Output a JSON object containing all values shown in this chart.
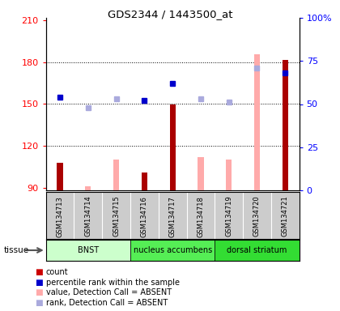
{
  "title": "GDS2344 / 1443500_at",
  "samples": [
    "GSM134713",
    "GSM134714",
    "GSM134715",
    "GSM134716",
    "GSM134717",
    "GSM134718",
    "GSM134719",
    "GSM134720",
    "GSM134721"
  ],
  "count_values": [
    108,
    null,
    null,
    101,
    150,
    null,
    null,
    null,
    182
  ],
  "count_absent_values": [
    null,
    91,
    110,
    null,
    null,
    112,
    110,
    186,
    null
  ],
  "rank_present_pct": [
    54,
    null,
    null,
    52,
    62,
    null,
    null,
    null,
    68
  ],
  "rank_absent_pct": [
    null,
    48,
    53,
    null,
    null,
    53,
    51,
    71,
    null
  ],
  "ylim_left": [
    88,
    212
  ],
  "ylim_right": [
    0,
    100
  ],
  "yticks_left": [
    90,
    120,
    150,
    180,
    210
  ],
  "yticks_right": [
    0,
    25,
    50,
    75,
    100
  ],
  "ytick_labels_left": [
    "90",
    "120",
    "150",
    "180",
    "210"
  ],
  "ytick_labels_right": [
    "0",
    "25",
    "50",
    "75",
    "100%"
  ],
  "tissue_groups": [
    {
      "label": "BNST",
      "start": 0,
      "end": 3,
      "color": "#ccffcc"
    },
    {
      "label": "nucleus accumbens",
      "start": 3,
      "end": 6,
      "color": "#55ee55"
    },
    {
      "label": "dorsal striatum",
      "start": 6,
      "end": 9,
      "color": "#33dd33"
    }
  ],
  "color_count_present": "#aa0000",
  "color_count_absent": "#ffaaaa",
  "color_rank_present": "#0000cc",
  "color_rank_absent": "#aaaadd",
  "sample_bg_color": "#cccccc",
  "legend_items": [
    {
      "color": "#cc0000",
      "label": "count"
    },
    {
      "color": "#0000cc",
      "label": "percentile rank within the sample"
    },
    {
      "color": "#ffaaaa",
      "label": "value, Detection Call = ABSENT"
    },
    {
      "color": "#aaaadd",
      "label": "rank, Detection Call = ABSENT"
    }
  ]
}
